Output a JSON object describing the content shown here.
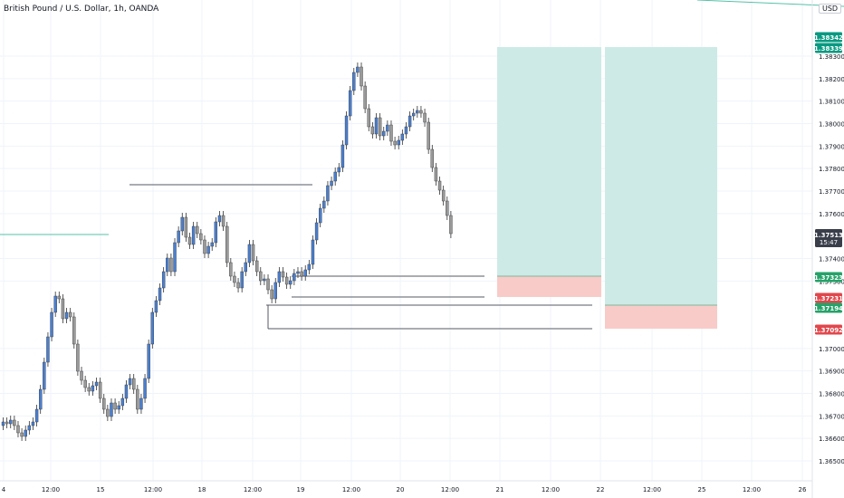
{
  "chart": {
    "symbol_title": "British Pound / U.S. Dollar, 1h, OANDA",
    "currency": "USD",
    "top_axis_label": "1.",
    "colors": {
      "bull": "#4a7fd0",
      "bear": "#9a9a9a",
      "profit_zone": "#cdeae6",
      "loss_zone": "#f8cbc8",
      "teal_line": "#56c1a6",
      "level_line": "#555a66",
      "tag_green": "#26a269",
      "tag_red": "#e0474c",
      "tag_teal": "#089981",
      "tag_dark": "#3a3e4a",
      "grid": "#f0f3fa",
      "axis_text": "#131722"
    },
    "price_levels": [
      "1.38300",
      "1.38200",
      "1.38100",
      "1.38000",
      "1.37900",
      "1.37800",
      "1.37700",
      "1.37600",
      "1.37400",
      "1.37300",
      "1.37000",
      "1.36900",
      "1.36800",
      "1.36700",
      "1.36600",
      "1.36500"
    ],
    "time_labels": [
      "4",
      "12:00",
      "15",
      "12:00",
      "18",
      "12:00",
      "19",
      "12:00",
      "20",
      "12:00",
      "21",
      "12:00",
      "22",
      "12:00",
      "25",
      "12:00",
      "26"
    ],
    "price_tags": [
      {
        "value": "1.38342",
        "color_key": "tag_teal"
      },
      {
        "value": "1.38339",
        "color_key": "tag_teal"
      },
      {
        "value": "1.37513",
        "sub": "15:47",
        "color_key": "tag_dark"
      },
      {
        "value": "1.37323",
        "color_key": "tag_green"
      },
      {
        "value": "1.37231",
        "color_key": "tag_red"
      },
      {
        "value": "1.37194",
        "color_key": "tag_green"
      },
      {
        "value": "1.37092",
        "color_key": "tag_red"
      }
    ]
  }
}
